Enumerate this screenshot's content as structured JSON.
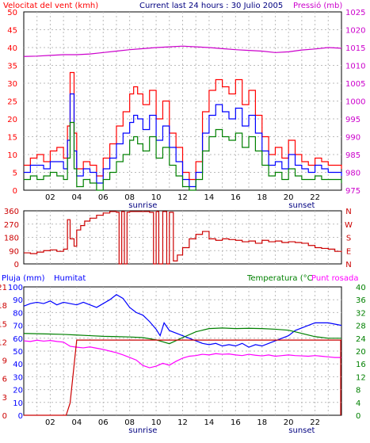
{
  "header": {
    "wind_label": "Velocitat del vent (kmh)",
    "title": "Current last 24 hours : 30 Julio 2005",
    "pressure_label": "Pressió (mb)"
  },
  "bottom_header": {
    "rain_label": "Pluja (mm)",
    "humidity_label": "Humitat",
    "temperature_label": "Temperatura (°C",
    "dewpoint_label": "Punt rosada"
  },
  "x_ticks": [
    "02",
    "04",
    "06",
    "08",
    "10",
    "12",
    "14",
    "16",
    "18",
    "20",
    "22"
  ],
  "sunrise_label": "sunrise",
  "sunset_label": "sunset",
  "colors": {
    "wind_speed": "#ff0000",
    "wind_avg": "#0000ff",
    "wind_low": "#008000",
    "pressure": "#cc00cc",
    "direction": "#cc0000",
    "humidity": "#0000ff",
    "temperature": "#008000",
    "dewpoint": "#ff00ff",
    "rain": "#cc0000",
    "left_axis_wind": "#ff0000",
    "right_axis_pressure": "#cc00cc",
    "left_axis_rain": "#0000ff",
    "right_axis_temp": "#008000",
    "grid": "#bbbbbb"
  },
  "chart_data": [
    {
      "type": "line",
      "name": "wind",
      "x_unit": "hour",
      "xlim": [
        0,
        24
      ],
      "ylim_left": [
        0,
        50
      ],
      "ylim_right": [
        975,
        1025
      ],
      "left_ticks": [
        "0",
        "5",
        "10",
        "15",
        "20",
        "25",
        "30",
        "35",
        "40",
        "45",
        "50"
      ],
      "right_ticks": [
        "975",
        "980",
        "985",
        "990",
        "995",
        "1000",
        "1005",
        "1010",
        "1015",
        "1020",
        "1025"
      ],
      "grid": true,
      "series": [
        {
          "role": "gust",
          "x": [
            0,
            0.5,
            1,
            1.5,
            2,
            2.5,
            3,
            3.3,
            3.5,
            3.8,
            4,
            4.5,
            5,
            5.5,
            6,
            6.5,
            7,
            7.5,
            8,
            8.3,
            8.6,
            9,
            9.5,
            10,
            10.5,
            11,
            11.5,
            12,
            12.5,
            13,
            13.5,
            14,
            14.5,
            15,
            15.5,
            16,
            16.5,
            17,
            17.5,
            18,
            18.5,
            19,
            19.5,
            20,
            20.5,
            21,
            21.5,
            22,
            22.5,
            23,
            23.5,
            24
          ],
          "y": [
            7,
            9,
            10,
            8,
            11,
            12,
            9,
            18,
            33,
            16,
            6,
            8,
            7,
            4,
            9,
            13,
            18,
            22,
            27,
            29,
            27,
            24,
            28,
            20,
            25,
            16,
            12,
            5,
            3,
            8,
            22,
            28,
            31,
            29,
            27,
            31,
            24,
            28,
            21,
            15,
            10,
            12,
            9,
            14,
            10,
            8,
            7,
            9,
            8,
            7,
            7,
            6
          ]
        },
        {
          "role": "average",
          "x": [
            0,
            0.5,
            1,
            1.5,
            2,
            2.5,
            3,
            3.3,
            3.5,
            3.8,
            4,
            4.5,
            5,
            5.5,
            6,
            6.5,
            7,
            7.5,
            8,
            8.3,
            8.6,
            9,
            9.5,
            10,
            10.5,
            11,
            11.5,
            12,
            12.5,
            13,
            13.5,
            14,
            14.5,
            15,
            15.5,
            16,
            16.5,
            17,
            17.5,
            18,
            18.5,
            19,
            19.5,
            20,
            20.5,
            21,
            21.5,
            22,
            22.5,
            23,
            23.5,
            24
          ],
          "y": [
            5,
            7,
            7,
            6,
            8,
            8,
            6,
            14,
            27,
            11,
            4,
            6,
            5,
            2,
            6,
            9,
            13,
            16,
            19,
            21,
            20,
            17,
            21,
            14,
            18,
            12,
            8,
            3,
            1,
            5,
            16,
            21,
            24,
            22,
            20,
            23,
            18,
            21,
            16,
            11,
            7,
            8,
            6,
            10,
            7,
            6,
            5,
            7,
            6,
            5,
            5,
            4
          ]
        },
        {
          "role": "low",
          "x": [
            0,
            0.5,
            1,
            1.5,
            2,
            2.5,
            3,
            3.3,
            3.5,
            3.8,
            4,
            4.5,
            5,
            5.5,
            6,
            6.5,
            7,
            7.5,
            8,
            8.3,
            8.6,
            9,
            9.5,
            10,
            10.5,
            11,
            11.5,
            12,
            12.5,
            13,
            13.5,
            14,
            14.5,
            15,
            15.5,
            16,
            16.5,
            17,
            17.5,
            18,
            18.5,
            19,
            19.5,
            20,
            20.5,
            21,
            21.5,
            22,
            22.5,
            23,
            23.5,
            24
          ],
          "y": [
            3,
            4,
            3,
            4,
            5,
            4,
            3,
            9,
            19,
            6,
            1,
            3,
            2,
            0,
            3,
            5,
            8,
            10,
            14,
            15,
            13,
            11,
            15,
            9,
            12,
            7,
            4,
            1,
            0,
            3,
            11,
            15,
            17,
            15,
            14,
            16,
            12,
            15,
            11,
            7,
            4,
            5,
            3,
            6,
            4,
            3,
            3,
            4,
            3,
            3,
            3,
            2
          ]
        },
        {
          "role": "pressure",
          "axis": "right",
          "x": [
            0,
            1,
            2,
            3,
            4,
            5,
            6,
            7,
            8,
            9,
            10,
            11,
            12,
            13,
            14,
            15,
            16,
            17,
            18,
            19,
            20,
            21,
            22,
            23,
            24
          ],
          "y": [
            1012.5,
            1012.6,
            1012.8,
            1013.0,
            1013.0,
            1013.2,
            1013.6,
            1014.0,
            1014.4,
            1014.7,
            1015.0,
            1015.2,
            1015.4,
            1015.2,
            1015.0,
            1014.7,
            1014.4,
            1014.2,
            1014.0,
            1013.6,
            1013.8,
            1014.3,
            1014.6,
            1015.0,
            1014.8
          ]
        }
      ]
    },
    {
      "type": "line",
      "name": "wind_direction",
      "x_unit": "hour",
      "xlim": [
        0,
        24
      ],
      "ylim": [
        0,
        360
      ],
      "left_ticks": [
        "0",
        "90",
        "180",
        "270",
        "360"
      ],
      "right_ticks": [
        "N",
        "E",
        "S",
        "W",
        "N"
      ],
      "grid": true,
      "series": [
        {
          "role": "direction",
          "x": [
            0,
            0.5,
            1,
            1.5,
            2,
            2.5,
            3,
            3.3,
            3.5,
            3.8,
            4,
            4.3,
            4.6,
            5,
            5.5,
            6,
            6.5,
            7,
            7.2,
            7.4,
            7.6,
            7.8,
            8,
            8.5,
            9,
            9.5,
            9.8,
            10,
            10.2,
            10.5,
            10.8,
            11,
            11.3,
            11.6,
            12,
            12.5,
            13,
            13.5,
            14,
            14.5,
            15,
            15.5,
            16,
            16.5,
            17,
            17.5,
            18,
            18.5,
            19,
            19.5,
            20,
            20.5,
            21,
            21.5,
            22,
            22.5,
            23,
            23.5,
            24
          ],
          "y": [
            75,
            70,
            80,
            90,
            95,
            85,
            100,
            300,
            170,
            120,
            230,
            260,
            290,
            310,
            330,
            345,
            355,
            350,
            0,
            355,
            0,
            350,
            355,
            355,
            355,
            350,
            0,
            355,
            0,
            355,
            0,
            350,
            20,
            60,
            110,
            170,
            200,
            220,
            170,
            160,
            170,
            165,
            160,
            150,
            155,
            140,
            160,
            150,
            155,
            145,
            150,
            145,
            140,
            125,
            110,
            105,
            100,
            85,
            80
          ]
        }
      ]
    },
    {
      "type": "line",
      "name": "humidity_temperature_rain",
      "x_unit": "hour",
      "xlim": [
        0,
        24
      ],
      "ylim_rain": [
        0,
        21
      ],
      "ylim_humidity": [
        0,
        100
      ],
      "ylim_temp": [
        0,
        40
      ],
      "rain_ticks": [
        "0",
        "3",
        "6",
        "9",
        "12",
        "15",
        "18",
        "21"
      ],
      "humidity_ticks": [
        "0",
        "10",
        "20",
        "30",
        "40",
        "50",
        "60",
        "70",
        "80",
        "90",
        "100"
      ],
      "temp_ticks": [
        "0",
        "4",
        "8",
        "12",
        "16",
        "20",
        "24",
        "28",
        "32",
        "36",
        "40"
      ],
      "grid": true,
      "series": [
        {
          "role": "humidity",
          "axis": "humidity",
          "x": [
            0,
            0.5,
            1,
            1.5,
            2,
            2.5,
            3,
            3.5,
            4,
            4.5,
            5,
            5.5,
            6,
            6.5,
            7,
            7.5,
            8,
            8.5,
            9,
            9.5,
            10,
            10.3,
            10.6,
            11,
            11.5,
            12,
            12.5,
            13,
            13.5,
            14,
            14.5,
            15,
            15.5,
            16,
            16.5,
            17,
            17.5,
            18,
            18.5,
            19,
            19.5,
            20,
            20.5,
            21,
            21.5,
            22,
            22.5,
            23,
            23.5,
            24
          ],
          "y": [
            85,
            87,
            88,
            87,
            89,
            86,
            88,
            87,
            86,
            88,
            86,
            84,
            87,
            90,
            94,
            91,
            84,
            80,
            78,
            73,
            67,
            62,
            72,
            66,
            64,
            62,
            60,
            58,
            56,
            55,
            56,
            54,
            55,
            54,
            56,
            53,
            55,
            54,
            56,
            58,
            60,
            62,
            66,
            68,
            70,
            72,
            72,
            72,
            71,
            70
          ]
        },
        {
          "role": "temperature",
          "axis": "temp",
          "x": [
            0,
            1,
            2,
            3,
            4,
            5,
            6,
            7,
            8,
            9,
            10,
            11,
            12,
            13,
            14,
            15,
            16,
            17,
            18,
            19,
            20,
            21,
            22,
            23,
            24
          ],
          "y": [
            25.5,
            25.4,
            25.3,
            25.2,
            25.0,
            24.8,
            24.6,
            24.5,
            24.4,
            24.2,
            23.5,
            22.3,
            24.2,
            26.0,
            27.0,
            27.2,
            27.0,
            27.1,
            27.0,
            26.8,
            26.5,
            25.5,
            24.5,
            24.0,
            24.0
          ]
        },
        {
          "role": "dewpoint",
          "axis": "temp",
          "x": [
            0,
            0.5,
            1,
            1.5,
            2,
            2.5,
            3,
            3.5,
            4,
            4.5,
            5,
            5.5,
            6,
            6.5,
            7,
            7.5,
            8,
            8.5,
            9,
            9.5,
            10,
            10.5,
            11,
            11.5,
            12,
            12.5,
            13,
            13.5,
            14,
            14.5,
            15,
            15.5,
            16,
            16.5,
            17,
            17.5,
            18,
            18.5,
            19,
            19.5,
            20,
            20.5,
            21,
            21.5,
            22,
            22.5,
            23,
            23.5,
            24
          ],
          "y": [
            23.2,
            23.0,
            23.4,
            23.1,
            23.3,
            23.0,
            22.8,
            21.5,
            21.2,
            21.0,
            21.3,
            20.9,
            20.5,
            20.0,
            19.5,
            18.8,
            18.0,
            17.2,
            15.5,
            14.8,
            15.3,
            16.2,
            15.6,
            16.8,
            17.8,
            18.4,
            18.6,
            19.0,
            18.8,
            19.2,
            19.0,
            19.1,
            18.8,
            18.6,
            19.0,
            18.7,
            18.5,
            18.8,
            18.4,
            18.6,
            18.8,
            18.6,
            18.5,
            18.4,
            18.6,
            18.4,
            18.2,
            18.0,
            18.0
          ]
        },
        {
          "role": "rain",
          "axis": "rain",
          "x": [
            0,
            3.2,
            3.5,
            4,
            24
          ],
          "y": [
            0,
            0,
            2,
            12.3,
            12.3
          ]
        }
      ]
    }
  ]
}
